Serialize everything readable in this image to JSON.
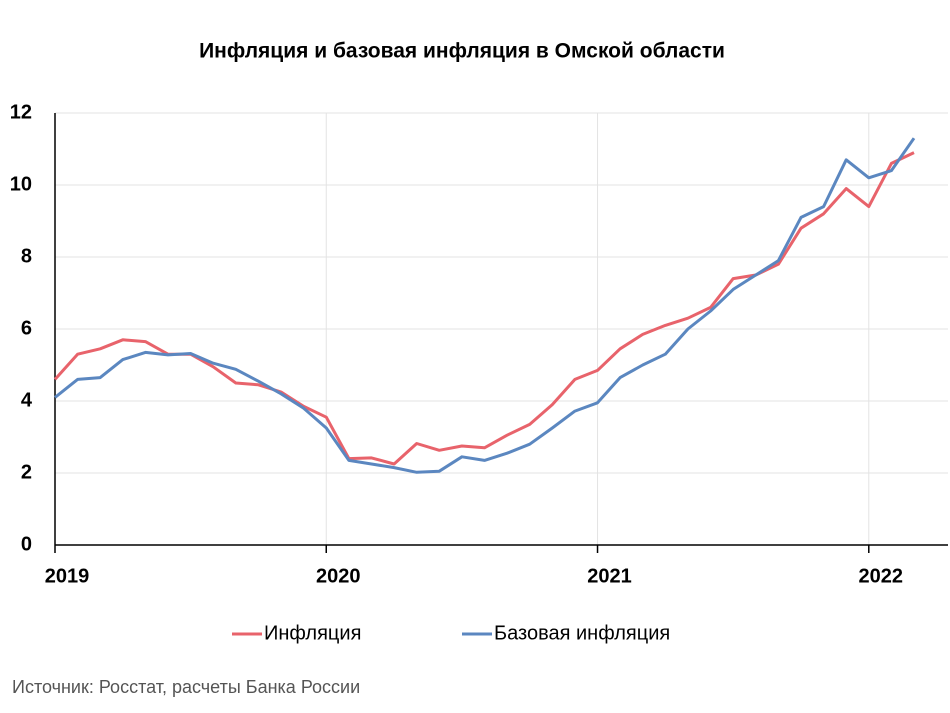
{
  "chart_data": {
    "type": "line",
    "title": "Инфляция и базовая инфляция в Омской области",
    "source": "Источник: Росстат, расчеты Банка России",
    "categories": [
      "2019",
      null,
      null,
      null,
      null,
      null,
      null,
      null,
      null,
      null,
      null,
      null,
      "2020",
      null,
      null,
      null,
      null,
      null,
      null,
      null,
      null,
      null,
      null,
      null,
      "2021",
      null,
      null,
      null,
      null,
      null,
      null,
      null,
      null,
      null,
      null,
      null,
      "2022",
      null,
      null
    ],
    "series": [
      {
        "name": "Инфляция",
        "color": "#e8636b",
        "values": [
          4.6,
          5.3,
          5.45,
          5.7,
          5.65,
          5.3,
          5.3,
          4.95,
          4.5,
          4.45,
          4.25,
          3.85,
          3.55,
          2.4,
          2.42,
          2.25,
          2.82,
          2.63,
          2.75,
          2.7,
          3.05,
          3.35,
          3.9,
          4.6,
          4.85,
          5.45,
          5.85,
          6.1,
          6.3,
          6.6,
          7.4,
          7.5,
          7.8,
          8.8,
          9.2,
          9.9,
          9.4,
          10.6,
          10.9
        ]
      },
      {
        "name": "Базовая инфляция",
        "color": "#5b87c0",
        "values": [
          4.1,
          4.6,
          4.65,
          5.15,
          5.35,
          5.28,
          5.32,
          5.05,
          4.88,
          4.55,
          4.2,
          3.8,
          3.25,
          2.35,
          2.25,
          2.15,
          2.02,
          2.05,
          2.45,
          2.35,
          2.55,
          2.8,
          3.25,
          3.72,
          3.95,
          4.65,
          5.0,
          5.3,
          6.0,
          6.5,
          7.1,
          7.5,
          7.9,
          9.1,
          9.4,
          10.7,
          10.2,
          10.4,
          11.3
        ]
      }
    ],
    "ylim": [
      0,
      12
    ],
    "yticks": [
      0,
      2,
      4,
      6,
      8,
      10,
      12
    ],
    "grid": true,
    "legend": "bottom"
  }
}
